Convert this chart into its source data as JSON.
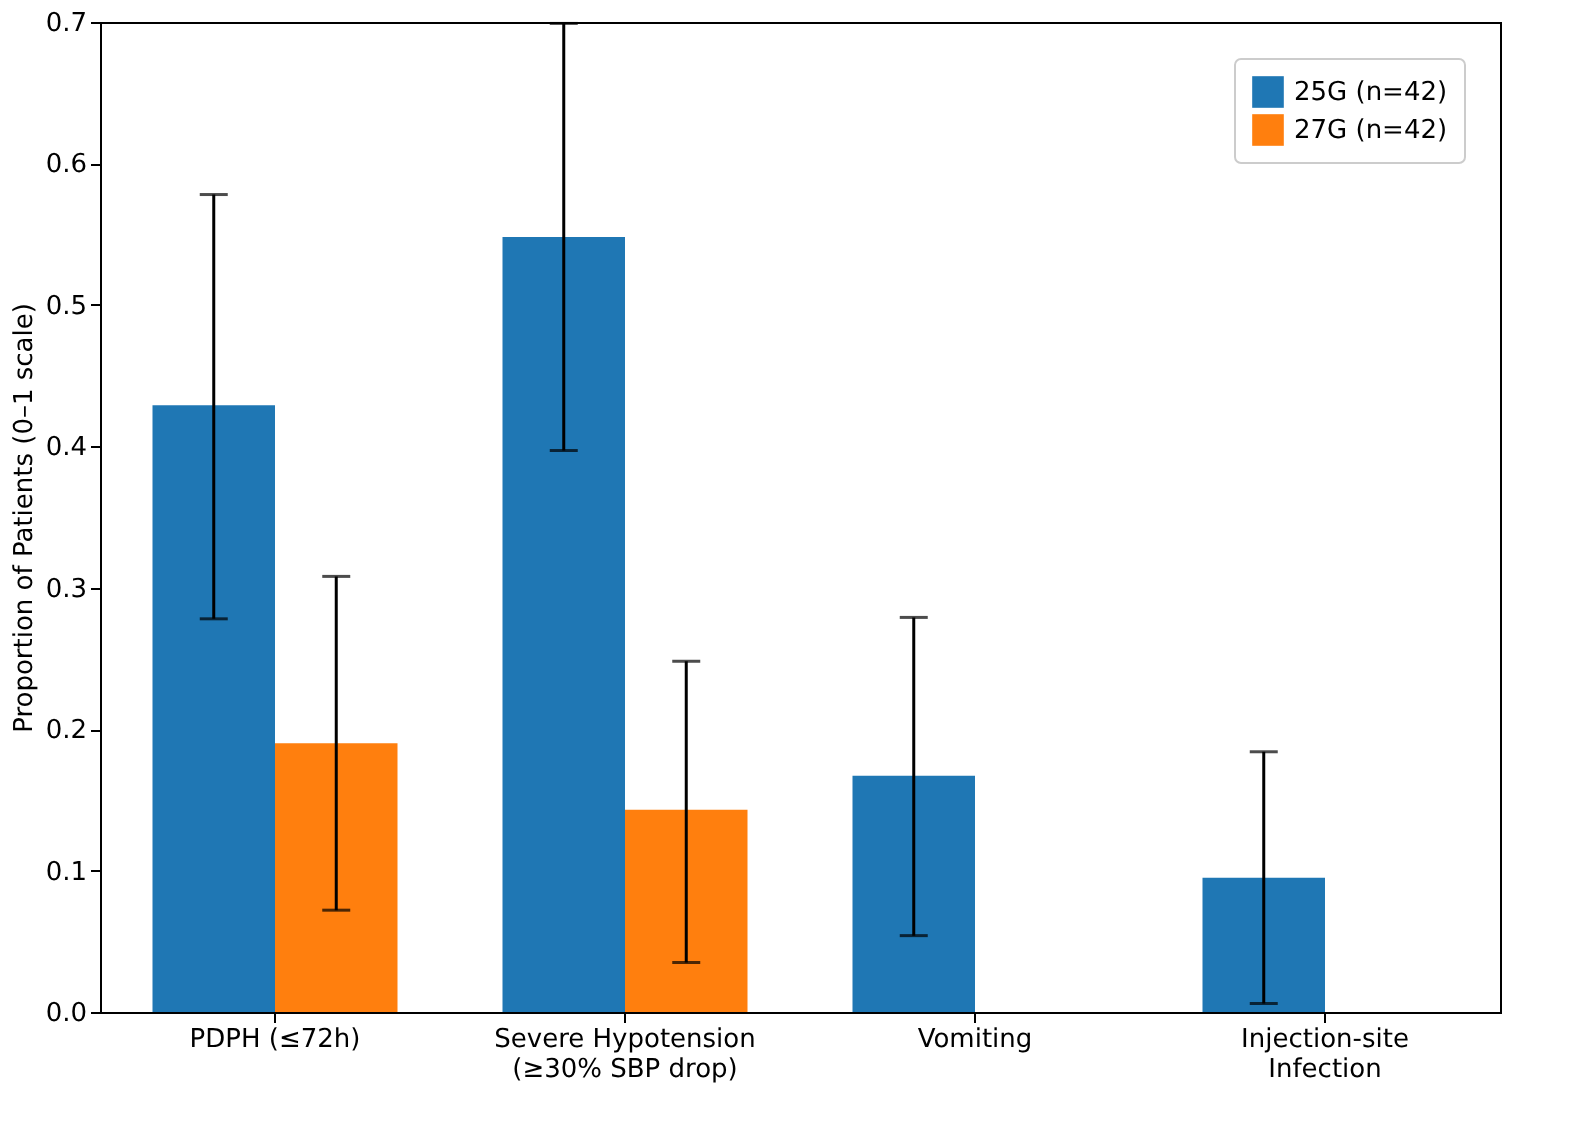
{
  "chart_data": {
    "type": "bar",
    "ylabel": "Proportion of Patients (0–1 scale)",
    "categories": [
      "PDPH (≤72h)",
      "Severe Hypotension\n(≥30% SBP drop)",
      "Vomiting",
      "Injection-site\nInfection"
    ],
    "series": [
      {
        "name": "25G (n=42)",
        "color": "#1f77b4",
        "values": [
          0.429,
          0.548,
          0.167,
          0.095
        ],
        "errors": [
          [
            0.278,
            0.578
          ],
          [
            0.397,
            0.699
          ],
          [
            0.054,
            0.279
          ],
          [
            0.006,
            0.184
          ]
        ]
      },
      {
        "name": "27G (n=42)",
        "color": "#ff7f0e",
        "values": [
          0.19,
          0.143,
          0,
          0
        ],
        "errors": [
          [
            0.072,
            0.308
          ],
          [
            0.035,
            0.248
          ],
          null,
          null
        ]
      }
    ],
    "ylim": [
      0,
      0.7
    ],
    "yticks": [
      {
        "value": 0,
        "label": "0.0"
      },
      0.1,
      0.2,
      0.3,
      0.4,
      0.5,
      0.6,
      0.7
    ],
    "grid": false,
    "legend": "top right"
  }
}
